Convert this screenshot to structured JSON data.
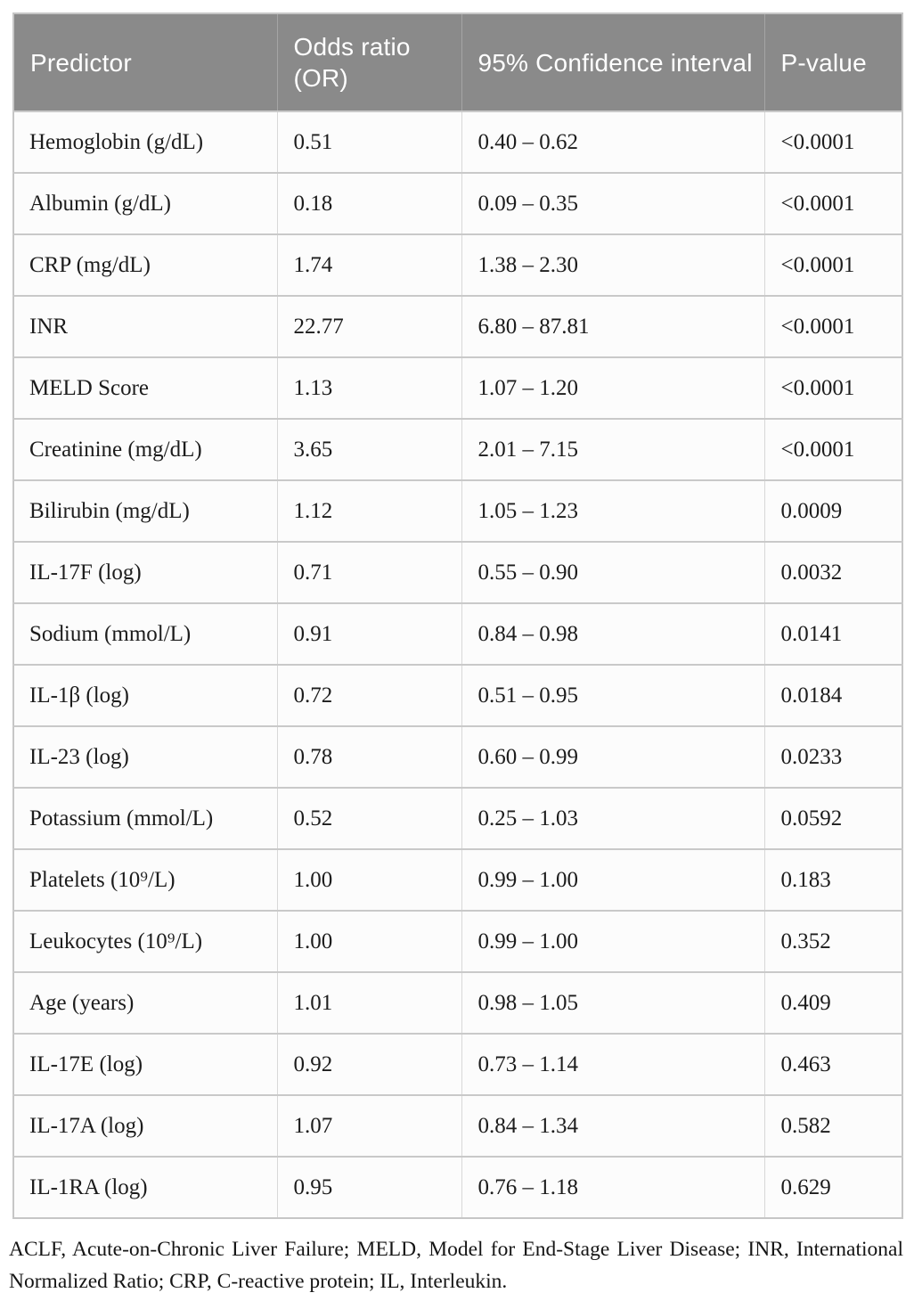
{
  "colors": {
    "header_bg": "#8a8a8a",
    "header_text": "#ffffff",
    "cell_bg": "#fcfcfc",
    "body_text": "#1c1c1c",
    "border": "#c9c9c9"
  },
  "table": {
    "header": {
      "columns": [
        "Predictor",
        "Odds ratio (OR)",
        "95% Confidence interval",
        "P-value"
      ]
    },
    "rows": [
      {
        "predictor": "Hemoglobin (g/dL)",
        "or": "0.51",
        "ci": "0.40 – 0.62",
        "p": "<0.0001"
      },
      {
        "predictor": "Albumin (g/dL)",
        "or": "0.18",
        "ci": "0.09 – 0.35",
        "p": "<0.0001"
      },
      {
        "predictor": "CRP (mg/dL)",
        "or": "1.74",
        "ci": "1.38 – 2.30",
        "p": "<0.0001"
      },
      {
        "predictor": "INR",
        "or": "22.77",
        "ci": "6.80 – 87.81",
        "p": "<0.0001"
      },
      {
        "predictor": "MELD Score",
        "or": "1.13",
        "ci": "1.07 – 1.20",
        "p": "<0.0001"
      },
      {
        "predictor": "Creatinine (mg/dL)",
        "or": "3.65",
        "ci": "2.01 – 7.15",
        "p": "<0.0001"
      },
      {
        "predictor": "Bilirubin (mg/dL)",
        "or": "1.12",
        "ci": "1.05 – 1.23",
        "p": "0.0009"
      },
      {
        "predictor": "IL-17F (log)",
        "or": "0.71",
        "ci": "0.55 – 0.90",
        "p": "0.0032"
      },
      {
        "predictor": "Sodium (mmol/L)",
        "or": "0.91",
        "ci": "0.84 – 0.98",
        "p": "0.0141"
      },
      {
        "predictor": "IL-1β (log)",
        "or": "0.72",
        "ci": "0.51 – 0.95",
        "p": "0.0184"
      },
      {
        "predictor": "IL-23 (log)",
        "or": "0.78",
        "ci": "0.60 – 0.99",
        "p": "0.0233"
      },
      {
        "predictor": "Potassium (mmol/L)",
        "or": "0.52",
        "ci": "0.25 – 1.03",
        "p": "0.0592"
      },
      {
        "predictor": "Platelets (10⁹/L)",
        "or": "1.00",
        "ci": "0.99 – 1.00",
        "p": "0.183"
      },
      {
        "predictor": "Leukocytes (10⁹/L)",
        "or": "1.00",
        "ci": "0.99 – 1.00",
        "p": "0.352"
      },
      {
        "predictor": "Age (years)",
        "or": "1.01",
        "ci": "0.98 – 1.05",
        "p": "0.409"
      },
      {
        "predictor": "IL-17E (log)",
        "or": "0.92",
        "ci": "0.73 – 1.14",
        "p": "0.463"
      },
      {
        "predictor": "IL-17A (log)",
        "or": "1.07",
        "ci": "0.84 – 1.34",
        "p": "0.582"
      },
      {
        "predictor": "IL-1RA (log)",
        "or": "0.95",
        "ci": "0.76 – 1.18",
        "p": "0.629"
      }
    ]
  },
  "footnote": "ACLF, Acute-on-Chronic Liver Failure; MELD, Model for End-Stage Liver Disease; INR, International Normalized Ratio; CRP, C-reactive protein; IL, Interleukin.",
  "chart_data": {
    "type": "table",
    "title": "",
    "columns": [
      "Predictor",
      "Odds ratio (OR)",
      "95% Confidence interval",
      "P-value"
    ],
    "rows": [
      [
        "Hemoglobin (g/dL)",
        0.51,
        "0.40 – 0.62",
        "<0.0001"
      ],
      [
        "Albumin (g/dL)",
        0.18,
        "0.09 – 0.35",
        "<0.0001"
      ],
      [
        "CRP (mg/dL)",
        1.74,
        "1.38 – 2.30",
        "<0.0001"
      ],
      [
        "INR",
        22.77,
        "6.80 – 87.81",
        "<0.0001"
      ],
      [
        "MELD Score",
        1.13,
        "1.07 – 1.20",
        "<0.0001"
      ],
      [
        "Creatinine (mg/dL)",
        3.65,
        "2.01 – 7.15",
        "<0.0001"
      ],
      [
        "Bilirubin (mg/dL)",
        1.12,
        "1.05 – 1.23",
        "0.0009"
      ],
      [
        "IL-17F (log)",
        0.71,
        "0.55 – 0.90",
        "0.0032"
      ],
      [
        "Sodium (mmol/L)",
        0.91,
        "0.84 – 0.98",
        "0.0141"
      ],
      [
        "IL-1β (log)",
        0.72,
        "0.51 – 0.95",
        "0.0184"
      ],
      [
        "IL-23 (log)",
        0.78,
        "0.60 – 0.99",
        "0.0233"
      ],
      [
        "Potassium (mmol/L)",
        0.52,
        "0.25 – 1.03",
        "0.0592"
      ],
      [
        "Platelets (10⁹/L)",
        1.0,
        "0.99 – 1.00",
        "0.183"
      ],
      [
        "Leukocytes (10⁹/L)",
        1.0,
        "0.99 – 1.00",
        "0.352"
      ],
      [
        "Age (years)",
        1.01,
        "0.98 – 1.05",
        "0.409"
      ],
      [
        "IL-17E (log)",
        0.92,
        "0.73 – 1.14",
        "0.463"
      ],
      [
        "IL-17A (log)",
        1.07,
        "0.84 – 1.34",
        "0.582"
      ],
      [
        "IL-1RA (log)",
        0.95,
        "0.76 – 1.18",
        "0.629"
      ]
    ]
  }
}
